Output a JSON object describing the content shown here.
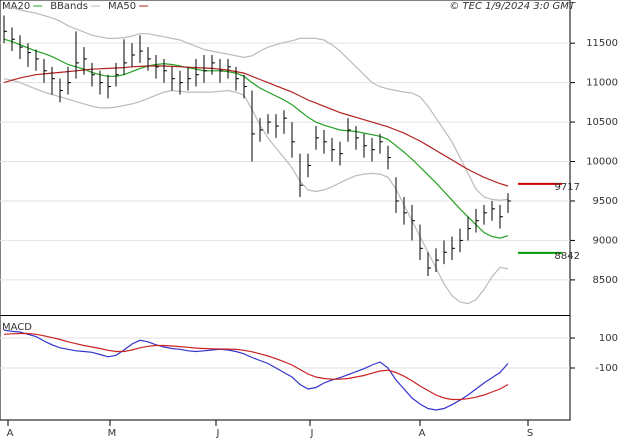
{
  "chart_data": [
    {
      "type": "ohlc",
      "title": "© TEC 1/9/2024 3:0 GMT",
      "xlim": [
        -0.5,
        70.75
      ],
      "ylim": [
        8055,
        12047
      ],
      "yticks": [
        8500,
        9000,
        9500,
        10000,
        10500,
        11000,
        11500
      ],
      "grid": true,
      "color": "#000000",
      "high": [
        11850,
        11700,
        11600,
        11500,
        11420,
        11300,
        11200,
        11050,
        11200,
        11650,
        11450,
        11250,
        11150,
        11100,
        11250,
        11550,
        11500,
        11600,
        11450,
        11350,
        11300,
        11200,
        11150,
        11200,
        11300,
        11350,
        11350,
        11300,
        11300,
        11200,
        11100,
        10900,
        10550,
        10600,
        10600,
        10650,
        10500,
        10100,
        10100,
        10450,
        10400,
        10300,
        10250,
        10550,
        10450,
        10350,
        10300,
        10350,
        10200,
        9800,
        9550,
        9450,
        9200,
        8850,
        8900,
        9000,
        9050,
        9150,
        9300,
        9400,
        9450,
        9500,
        9450,
        9600
      ],
      "low": [
        11500,
        11400,
        11300,
        11200,
        11150,
        11000,
        10850,
        10750,
        10850,
        11050,
        11100,
        10950,
        10850,
        10800,
        10950,
        11100,
        11200,
        11250,
        11150,
        11050,
        11000,
        10900,
        10850,
        10900,
        10950,
        11000,
        11100,
        11000,
        11050,
        10900,
        10800,
        10000,
        10250,
        10350,
        10300,
        10350,
        10050,
        9550,
        9800,
        10150,
        10100,
        10000,
        9950,
        10250,
        10150,
        10050,
        10000,
        10100,
        9900,
        9350,
        9200,
        9000,
        8750,
        8550,
        8600,
        8700,
        8750,
        8850,
        9000,
        9100,
        9200,
        9250,
        9150,
        9350
      ],
      "close": [
        11650,
        11550,
        11450,
        11380,
        11300,
        11150,
        11050,
        10900,
        11000,
        11250,
        11300,
        11100,
        11000,
        10950,
        11100,
        11250,
        11350,
        11400,
        11300,
        11200,
        11150,
        11050,
        11000,
        11050,
        11100,
        11150,
        11250,
        11150,
        11200,
        11050,
        10950,
        10350,
        10400,
        10500,
        10450,
        10550,
        10250,
        9700,
        9950,
        10300,
        10250,
        10150,
        10100,
        10400,
        10300,
        10200,
        10150,
        10250,
        10050,
        9500,
        9350,
        9250,
        8900,
        8650,
        8750,
        8850,
        8900,
        9000,
        9150,
        9250,
        9350,
        9400,
        9300,
        9500
      ],
      "series": [
        {
          "name": "MA20",
          "color": "#22a022",
          "values": [
            11550,
            11520,
            11480,
            11440,
            11400,
            11370,
            11330,
            11280,
            11230,
            11200,
            11170,
            11130,
            11100,
            11080,
            11080,
            11100,
            11140,
            11180,
            11210,
            11230,
            11240,
            11230,
            11210,
            11190,
            11170,
            11150,
            11150,
            11150,
            11140,
            11120,
            11080,
            11000,
            10930,
            10880,
            10830,
            10780,
            10720,
            10640,
            10560,
            10500,
            10460,
            10430,
            10400,
            10390,
            10380,
            10360,
            10340,
            10320,
            10280,
            10200,
            10120,
            10030,
            9930,
            9830,
            9730,
            9620,
            9510,
            9400,
            9300,
            9200,
            9100,
            9050,
            9030,
            9060
          ]
        },
        {
          "name": "BBands",
          "color": "#bbbbbb",
          "values": [
            11950,
            11950,
            11920,
            11900,
            11880,
            11850,
            11820,
            11780,
            11720,
            11680,
            11640,
            11600,
            11580,
            11560,
            11560,
            11570,
            11590,
            11620,
            11620,
            11600,
            11580,
            11560,
            11540,
            11500,
            11460,
            11420,
            11400,
            11380,
            11360,
            11340,
            11320,
            11340,
            11400,
            11450,
            11480,
            11510,
            11530,
            11560,
            11560,
            11560,
            11540,
            11480,
            11400,
            11300,
            11200,
            11100,
            11000,
            10950,
            10920,
            10900,
            10880,
            10870,
            10820,
            10700,
            10550,
            10400,
            10250,
            10050,
            9850,
            9650,
            9550,
            9520,
            9510,
            9520
          ],
          "lower": [
            11050,
            11030,
            11000,
            10960,
            10920,
            10880,
            10850,
            10820,
            10790,
            10760,
            10730,
            10700,
            10680,
            10680,
            10690,
            10710,
            10730,
            10760,
            10800,
            10840,
            10880,
            10900,
            10890,
            10880,
            10880,
            10880,
            10880,
            10890,
            10900,
            10880,
            10840,
            10660,
            10460,
            10300,
            10170,
            10050,
            9920,
            9750,
            9640,
            9620,
            9640,
            9680,
            9730,
            9780,
            9820,
            9840,
            9850,
            9840,
            9800,
            9650,
            9450,
            9250,
            9050,
            8850,
            8650,
            8450,
            8300,
            8220,
            8200,
            8250,
            8380,
            8540,
            8660,
            8640
          ]
        },
        {
          "name": "MA50",
          "color": "#b22222",
          "values": [
            11000,
            11030,
            11060,
            11080,
            11100,
            11110,
            11120,
            11130,
            11140,
            11150,
            11160,
            11170,
            11175,
            11180,
            11185,
            11190,
            11200,
            11205,
            11210,
            11210,
            11210,
            11205,
            11200,
            11195,
            11190,
            11185,
            11180,
            11170,
            11160,
            11140,
            11120,
            11080,
            11040,
            11000,
            10960,
            10920,
            10880,
            10830,
            10780,
            10740,
            10700,
            10660,
            10620,
            10590,
            10560,
            10530,
            10500,
            10470,
            10440,
            10400,
            10360,
            10310,
            10260,
            10200,
            10140,
            10080,
            10020,
            9960,
            9900,
            9850,
            9800,
            9760,
            9720,
            9690
          ]
        }
      ],
      "markers": [
        {
          "value": 9717,
          "color": "#cc0000"
        },
        {
          "value": 8842,
          "color": "#009900"
        }
      ]
    },
    {
      "type": "line",
      "title": "MACD",
      "xlim": [
        -0.5,
        70.75
      ],
      "ylim": [
        -447,
        247
      ],
      "yticks": [
        100,
        -100
      ],
      "grid": true,
      "xticks": [
        {
          "value": 0.5,
          "label": "A"
        },
        {
          "value": 13.25,
          "label": "M"
        },
        {
          "value": 26.5,
          "label": "J"
        },
        {
          "value": 38.25,
          "label": "J"
        },
        {
          "value": 52,
          "label": "A"
        },
        {
          "value": 65.5,
          "label": "S"
        }
      ],
      "series": [
        {
          "color": "#3333cc",
          "values": [
            153,
            145,
            140,
            125,
            110,
            80,
            55,
            35,
            25,
            15,
            10,
            5,
            -10,
            -25,
            -15,
            20,
            60,
            85,
            75,
            55,
            40,
            30,
            25,
            15,
            10,
            15,
            20,
            25,
            20,
            10,
            -5,
            -30,
            -50,
            -70,
            -100,
            -130,
            -160,
            -210,
            -240,
            -230,
            -200,
            -180,
            -165,
            -145,
            -125,
            -105,
            -80,
            -60,
            -100,
            -180,
            -240,
            -300,
            -340,
            -370,
            -380,
            -370,
            -345,
            -315,
            -280,
            -240,
            -200,
            -165,
            -130,
            -70
          ]
        },
        {
          "color": "#cc2222",
          "values": [
            125,
            128,
            130,
            130,
            125,
            115,
            103,
            90,
            75,
            62,
            50,
            40,
            30,
            18,
            10,
            10,
            20,
            35,
            45,
            50,
            50,
            47,
            43,
            38,
            33,
            30,
            28,
            27,
            26,
            24,
            18,
            8,
            -5,
            -20,
            -38,
            -58,
            -80,
            -110,
            -140,
            -160,
            -170,
            -175,
            -175,
            -170,
            -160,
            -150,
            -135,
            -120,
            -115,
            -130,
            -155,
            -185,
            -220,
            -250,
            -280,
            -300,
            -310,
            -310,
            -305,
            -295,
            -280,
            -260,
            -240,
            -210
          ]
        }
      ]
    }
  ]
}
